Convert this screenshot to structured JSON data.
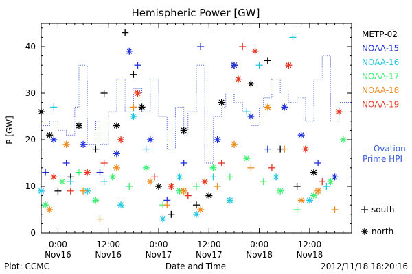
{
  "chart_data": {
    "type": "scatter",
    "title": "Hemispheric Power [GW]",
    "ylabel": "P [GW]",
    "xlabel": "Date and Time",
    "ylim": [
      0,
      45
    ],
    "yticks": [
      0,
      10,
      20,
      30,
      40
    ],
    "xlim": [
      "2012-11-15 20:00",
      "2012-11-18 22:00"
    ],
    "xticks": [
      {
        "time": "2012-11-16 00:00",
        "label1": "0:00",
        "label2": "Nov16"
      },
      {
        "time": "2012-11-16 12:00",
        "label1": "12:00",
        "label2": "Nov16"
      },
      {
        "time": "2012-11-17 00:00",
        "label1": "0:00",
        "label2": "Nov17"
      },
      {
        "time": "2012-11-17 12:00",
        "label1": "12:00",
        "label2": "Nov17"
      },
      {
        "time": "2012-11-18 00:00",
        "label1": "0:00",
        "label2": "Nov18"
      },
      {
        "time": "2012-11-18 12:00",
        "label1": "12:00",
        "label2": "Nov18"
      }
    ],
    "legend": [
      {
        "name": "METP-02",
        "color": "#000000"
      },
      {
        "name": "NOAA-15",
        "color": "#1f2fd8"
      },
      {
        "name": "NOAA-16",
        "color": "#22c6e0"
      },
      {
        "name": "NOAA-17",
        "color": "#3cef72"
      },
      {
        "name": "NOAA-18",
        "color": "#f08a1e"
      },
      {
        "name": "NOAA-19",
        "color": "#e8331e"
      }
    ],
    "ovation_label_1": "— Ovation",
    "ovation_label_2": "Prime HPI",
    "ovation_color": "#3a5fd8",
    "marker_legend": [
      {
        "symbol": "+",
        "label": "south"
      },
      {
        "symbol": "*",
        "label": "north"
      }
    ],
    "ovation_hpi": [
      [
        "2012-11-15 20:00",
        23
      ],
      [
        "2012-11-15 22:00",
        24
      ],
      [
        "2012-11-16 00:00",
        22
      ],
      [
        "2012-11-16 02:00",
        21
      ],
      [
        "2012-11-16 04:00",
        27
      ],
      [
        "2012-11-16 05:00",
        36
      ],
      [
        "2012-11-16 07:00",
        19
      ],
      [
        "2012-11-16 09:00",
        24
      ],
      [
        "2012-11-16 10:00",
        19
      ],
      [
        "2012-11-16 12:00",
        26
      ],
      [
        "2012-11-16 14:00",
        33
      ],
      [
        "2012-11-16 16:00",
        26
      ],
      [
        "2012-11-16 18:00",
        31
      ],
      [
        "2012-11-16 20:00",
        26
      ],
      [
        "2012-11-16 22:00",
        33
      ],
      [
        "2012-11-17 00:00",
        25
      ],
      [
        "2012-11-17 02:00",
        18
      ],
      [
        "2012-11-17 04:00",
        27
      ],
      [
        "2012-11-17 06:00",
        21
      ],
      [
        "2012-11-17 07:00",
        26
      ],
      [
        "2012-11-17 09:00",
        36
      ],
      [
        "2012-11-17 11:00",
        15
      ],
      [
        "2012-11-17 13:00",
        25
      ],
      [
        "2012-11-17 15:00",
        27
      ],
      [
        "2012-11-17 16:00",
        30
      ],
      [
        "2012-11-17 18:00",
        28
      ],
      [
        "2012-11-17 20:00",
        26
      ],
      [
        "2012-11-17 22:00",
        23
      ],
      [
        "2012-11-18 00:00",
        27
      ],
      [
        "2012-11-18 01:00",
        29
      ],
      [
        "2012-11-18 03:00",
        33
      ],
      [
        "2012-11-18 05:00",
        30
      ],
      [
        "2012-11-18 07:00",
        28
      ],
      [
        "2012-11-18 09:00",
        29
      ],
      [
        "2012-11-18 11:00",
        24
      ],
      [
        "2012-11-18 13:00",
        33
      ],
      [
        "2012-11-18 15:00",
        38
      ],
      [
        "2012-11-18 17:00",
        24
      ],
      [
        "2012-11-18 19:00",
        28
      ],
      [
        "2012-11-18 22:00",
        28
      ]
    ],
    "series": [
      {
        "name": "METP-02",
        "color": "#000000",
        "points": [
          [
            "2012-11-15 20:00",
            26,
            "n"
          ],
          [
            "2012-11-15 22:00",
            21,
            "n"
          ],
          [
            "2012-11-16 00:00",
            9,
            "s"
          ],
          [
            "2012-11-16 03:00",
            12,
            "s"
          ],
          [
            "2012-11-16 05:00",
            23,
            "n"
          ],
          [
            "2012-11-16 09:00",
            18,
            "s"
          ],
          [
            "2012-11-16 11:00",
            30,
            "s"
          ],
          [
            "2012-11-16 14:00",
            23,
            "n"
          ],
          [
            "2012-11-16 16:00",
            43,
            "s"
          ],
          [
            "2012-11-16 18:00",
            34,
            "s"
          ],
          [
            "2012-11-16 20:00",
            27,
            "n"
          ],
          [
            "2012-11-17 00:00",
            10,
            "n"
          ],
          [
            "2012-11-17 03:00",
            4,
            "s"
          ],
          [
            "2012-11-17 06:00",
            22,
            "n"
          ],
          [
            "2012-11-17 09:00",
            6,
            "s"
          ],
          [
            "2012-11-17 12:00",
            8,
            "n"
          ],
          [
            "2012-11-17 15:00",
            28,
            "n"
          ],
          [
            "2012-11-17 18:00",
            36,
            "n"
          ],
          [
            "2012-11-17 22:00",
            32,
            "n"
          ],
          [
            "2012-11-18 02:00",
            37,
            "s"
          ],
          [
            "2012-11-18 05:00",
            18,
            "s"
          ],
          [
            "2012-11-18 09:00",
            10,
            "s"
          ],
          [
            "2012-11-18 13:00",
            13,
            "n"
          ]
        ]
      },
      {
        "name": "NOAA-15",
        "color": "#1f2fd8",
        "points": [
          [
            "2012-11-15 21:00",
            13,
            "s"
          ],
          [
            "2012-11-15 23:00",
            20,
            "n"
          ],
          [
            "2012-11-16 02:00",
            15,
            "s"
          ],
          [
            "2012-11-16 06:00",
            19,
            "n"
          ],
          [
            "2012-11-16 10:00",
            13,
            "s"
          ],
          [
            "2012-11-16 14:00",
            17,
            "n"
          ],
          [
            "2012-11-16 17:00",
            39,
            "n"
          ],
          [
            "2012-11-16 19:00",
            36,
            "s"
          ],
          [
            "2012-11-16 22:00",
            20,
            "n"
          ],
          [
            "2012-11-17 02:00",
            7,
            "s"
          ],
          [
            "2012-11-17 06:00",
            15,
            "s"
          ],
          [
            "2012-11-17 10:00",
            40,
            "s"
          ],
          [
            "2012-11-17 14:00",
            20,
            "n"
          ],
          [
            "2012-11-17 18:00",
            36,
            "n"
          ],
          [
            "2012-11-17 22:00",
            25,
            "n"
          ],
          [
            "2012-11-18 02:00",
            18,
            "s"
          ],
          [
            "2012-11-18 06:00",
            27,
            "n"
          ],
          [
            "2012-11-18 10:00",
            21,
            "n"
          ],
          [
            "2012-11-18 14:00",
            15,
            "s"
          ],
          [
            "2012-11-18 18:00",
            12,
            "n"
          ]
        ]
      },
      {
        "name": "NOAA-16",
        "color": "#22c6e0",
        "points": [
          [
            "2012-11-15 20:00",
            9,
            "n"
          ],
          [
            "2012-11-15 23:00",
            27,
            "s"
          ],
          [
            "2012-11-16 03:00",
            11,
            "s"
          ],
          [
            "2012-11-16 07:00",
            9,
            "n"
          ],
          [
            "2012-11-16 11:00",
            11,
            "s"
          ],
          [
            "2012-11-16 15:00",
            6,
            "n"
          ],
          [
            "2012-11-16 18:00",
            25,
            "n"
          ],
          [
            "2012-11-16 21:00",
            18,
            "s"
          ],
          [
            "2012-11-17 01:00",
            3,
            "n"
          ],
          [
            "2012-11-17 05:00",
            12,
            "n"
          ],
          [
            "2012-11-17 09:00",
            4,
            "n"
          ],
          [
            "2012-11-17 13:00",
            12,
            "s"
          ],
          [
            "2012-11-17 17:00",
            7,
            "n"
          ],
          [
            "2012-11-17 21:00",
            26,
            "s"
          ],
          [
            "2012-11-18 00:00",
            36,
            "s"
          ],
          [
            "2012-11-18 04:00",
            12,
            "n"
          ],
          [
            "2012-11-18 08:00",
            42,
            "s"
          ],
          [
            "2012-11-18 12:00",
            7,
            "n"
          ],
          [
            "2012-11-18 16:00",
            10,
            "s"
          ]
        ]
      },
      {
        "name": "NOAA-17",
        "color": "#3cef72",
        "points": [
          [
            "2012-11-15 21:00",
            6,
            "n"
          ],
          [
            "2012-11-16 01:00",
            11,
            "n"
          ],
          [
            "2012-11-16 05:00",
            13,
            "s"
          ],
          [
            "2012-11-16 09:00",
            7,
            "n"
          ],
          [
            "2012-11-16 13:00",
            12,
            "n"
          ],
          [
            "2012-11-16 17:00",
            10,
            "s"
          ],
          [
            "2012-11-16 21:00",
            14,
            "n"
          ],
          [
            "2012-11-17 01:00",
            6,
            "s"
          ],
          [
            "2012-11-17 05:00",
            9,
            "n"
          ],
          [
            "2012-11-17 09:00",
            10,
            "s"
          ],
          [
            "2012-11-17 13:00",
            14,
            "n"
          ],
          [
            "2012-11-17 17:00",
            12,
            "s"
          ],
          [
            "2012-11-17 21:00",
            16,
            "n"
          ],
          [
            "2012-11-18 01:00",
            11,
            "s"
          ],
          [
            "2012-11-18 05:00",
            9,
            "n"
          ],
          [
            "2012-11-18 09:00",
            5,
            "s"
          ],
          [
            "2012-11-18 13:00",
            8,
            "n"
          ],
          [
            "2012-11-18 17:00",
            11,
            "n"
          ],
          [
            "2012-11-18 20:00",
            20,
            "n"
          ]
        ]
      },
      {
        "name": "NOAA-18",
        "color": "#f08a1e",
        "points": [
          [
            "2012-11-15 22:00",
            5,
            "n"
          ],
          [
            "2012-11-16 02:00",
            19,
            "n"
          ],
          [
            "2012-11-16 06:00",
            9,
            "s"
          ],
          [
            "2012-11-16 10:00",
            3,
            "s"
          ],
          [
            "2012-11-16 14:00",
            14,
            "n"
          ],
          [
            "2012-11-16 18:00",
            27,
            "s"
          ],
          [
            "2012-11-16 22:00",
            11,
            "n"
          ],
          [
            "2012-11-17 02:00",
            6,
            "s"
          ],
          [
            "2012-11-17 06:00",
            9,
            "n"
          ],
          [
            "2012-11-17 10:00",
            5,
            "n"
          ],
          [
            "2012-11-17 14:00",
            10,
            "s"
          ],
          [
            "2012-11-17 18:00",
            19,
            "n"
          ],
          [
            "2012-11-17 22:00",
            14,
            "s"
          ],
          [
            "2012-11-18 02:00",
            27,
            "n"
          ],
          [
            "2012-11-18 06:00",
            18,
            "s"
          ],
          [
            "2012-11-18 10:00",
            7,
            "n"
          ],
          [
            "2012-11-18 14:00",
            9,
            "n"
          ],
          [
            "2012-11-18 18:00",
            5,
            "s"
          ]
        ]
      },
      {
        "name": "NOAA-19",
        "color": "#e8331e",
        "points": [
          [
            "2012-11-15 23:00",
            12,
            "n"
          ],
          [
            "2012-11-16 03:00",
            9,
            "s"
          ],
          [
            "2012-11-16 07:00",
            13,
            "n"
          ],
          [
            "2012-11-16 11:00",
            15,
            "s"
          ],
          [
            "2012-11-16 15:00",
            20,
            "n"
          ],
          [
            "2012-11-16 19:00",
            30,
            "n"
          ],
          [
            "2012-11-16 23:00",
            12,
            "s"
          ],
          [
            "2012-11-17 03:00",
            10,
            "n"
          ],
          [
            "2012-11-17 07:00",
            8,
            "s"
          ],
          [
            "2012-11-17 11:00",
            11,
            "n"
          ],
          [
            "2012-11-17 15:00",
            15,
            "s"
          ],
          [
            "2012-11-17 19:00",
            33,
            "n"
          ],
          [
            "2012-11-17 20:00",
            40,
            "s"
          ],
          [
            "2012-11-17 23:00",
            39,
            "n"
          ],
          [
            "2012-11-18 03:00",
            14,
            "s"
          ],
          [
            "2012-11-18 07:00",
            36,
            "n"
          ],
          [
            "2012-11-18 11:00",
            18,
            "n"
          ],
          [
            "2012-11-18 15:00",
            11,
            "s"
          ],
          [
            "2012-11-18 19:00",
            26,
            "n"
          ]
        ]
      }
    ]
  },
  "footer": {
    "plot_credit": "Plot: CCMC",
    "timestamp": "2012/11/18 18:20:16"
  }
}
